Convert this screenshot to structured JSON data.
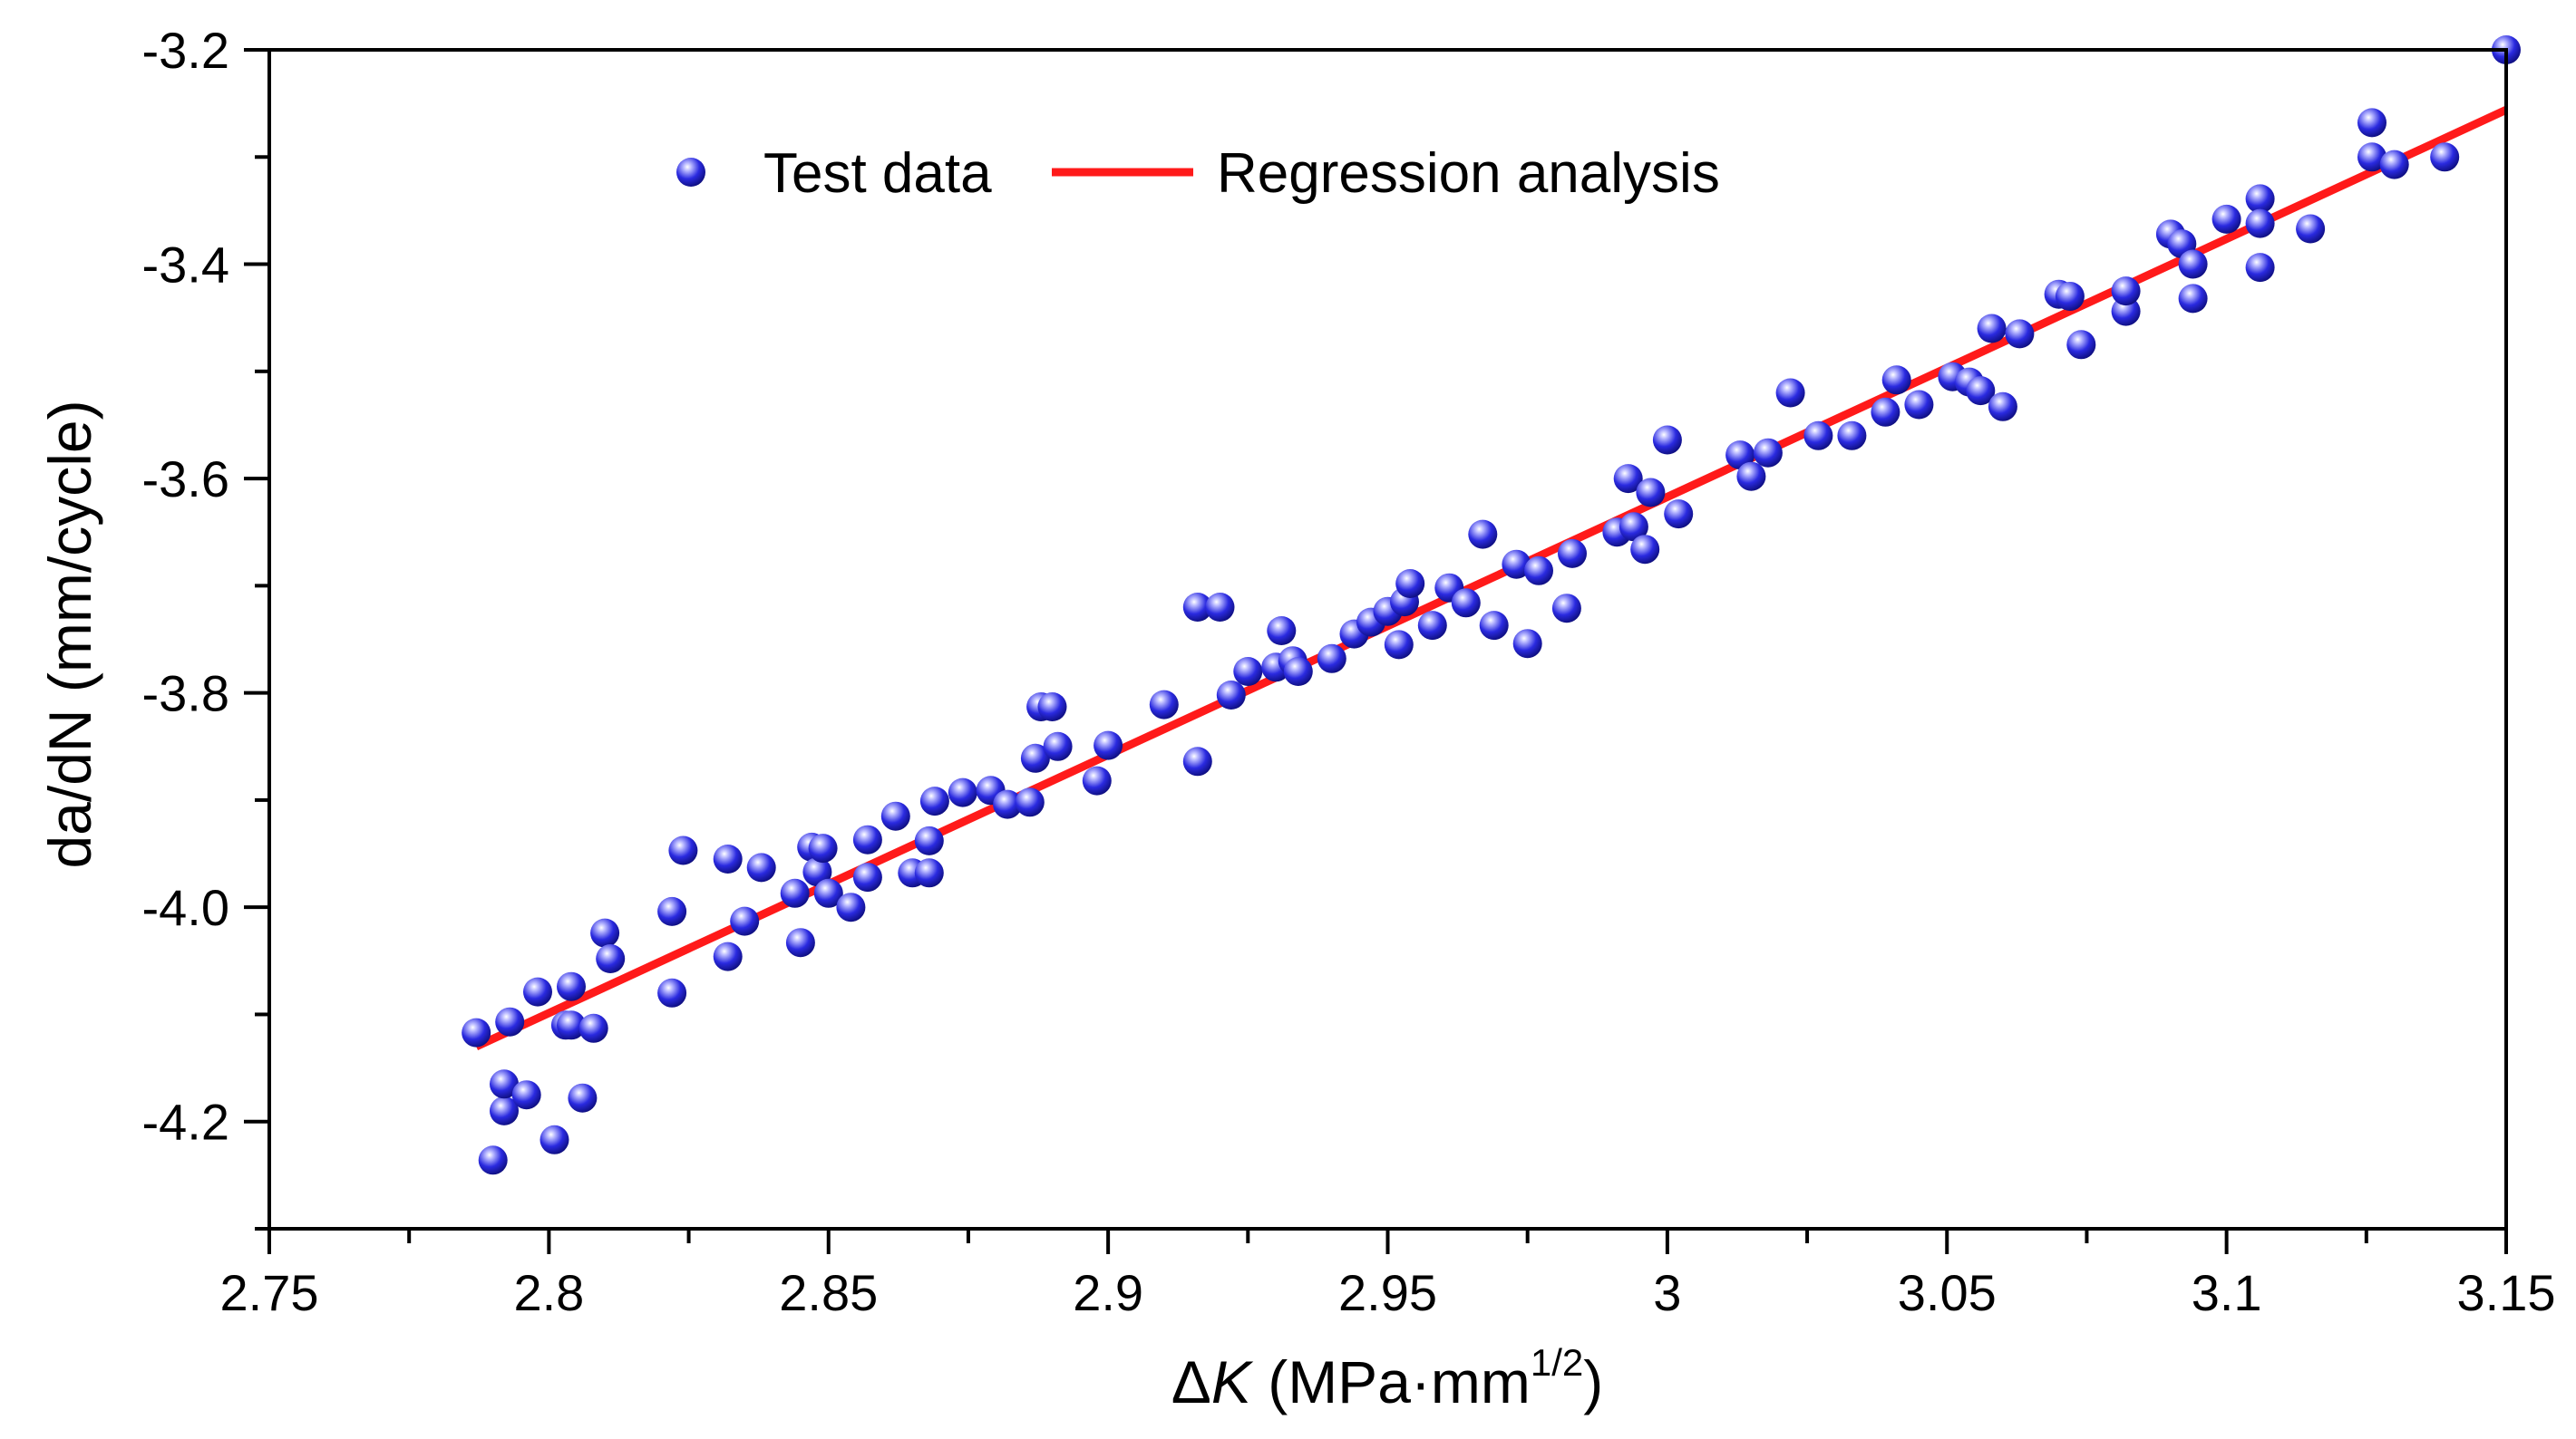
{
  "chart_data": {
    "type": "scatter",
    "xlabel": {
      "symbol": "Δ",
      "variable": "K",
      "unit": " (MPa·mm",
      "superscript": "1/2",
      "close": ")"
    },
    "ylabel": "da/dN (mm/cycle)",
    "xlim": [
      2.75,
      3.15
    ],
    "ylim": [
      -4.3,
      -3.2
    ],
    "x_ticks": [
      2.75,
      2.8,
      2.85,
      2.9,
      2.95,
      3.0,
      3.05,
      3.1,
      3.15
    ],
    "x_tick_labels": [
      "2.75",
      "2.8",
      "2.85",
      "2.9",
      "2.95",
      "3",
      "3.05",
      "3.1",
      "3.15"
    ],
    "y_ticks": [
      -4.2,
      -4.0,
      -3.8,
      -3.6,
      -3.4,
      -3.2
    ],
    "y_tick_labels": [
      "-4.2",
      "-4.0",
      "-3.8",
      "-3.6",
      "-3.4",
      "-3.2"
    ],
    "grid": false,
    "legend": {
      "position": "top-left",
      "entries": [
        "Test data",
        "Regression analysis"
      ]
    },
    "colors": {
      "points": "#1f1fd6",
      "line": "#ff1a1a"
    },
    "series": [
      {
        "name": "Test data",
        "type": "scatter",
        "x": [
          2.787,
          2.79,
          2.792,
          2.792,
          2.793,
          2.796,
          2.798,
          2.801,
          2.803,
          2.804,
          2.804,
          2.806,
          2.808,
          2.81,
          2.811,
          2.822,
          2.822,
          2.824,
          2.832,
          2.832,
          2.835,
          2.838,
          2.844,
          2.845,
          2.847,
          2.848,
          2.849,
          2.85,
          2.854,
          2.857,
          2.857,
          2.862,
          2.865,
          2.868,
          2.868,
          2.869,
          2.874,
          2.879,
          2.882,
          2.886,
          2.887,
          2.888,
          2.89,
          2.891,
          2.898,
          2.9,
          2.91,
          2.916,
          2.916,
          2.92,
          2.922,
          2.925,
          2.93,
          2.931,
          2.933,
          2.934,
          2.94,
          2.944,
          2.947,
          2.95,
          2.952,
          2.953,
          2.954,
          2.958,
          2.961,
          2.964,
          2.967,
          2.969,
          2.973,
          2.975,
          2.977,
          2.982,
          2.983,
          2.991,
          2.993,
          2.994,
          2.996,
          2.997,
          3.0,
          3.002,
          3.013,
          3.015,
          3.018,
          3.022,
          3.027,
          3.033,
          3.039,
          3.041,
          3.045,
          3.051,
          3.054,
          3.056,
          3.058,
          3.06,
          3.063,
          3.07,
          3.072,
          3.074,
          3.082,
          3.082,
          3.09,
          3.092,
          3.094,
          3.094,
          3.1,
          3.106,
          3.106,
          3.106,
          3.115,
          3.126,
          3.126,
          3.13,
          3.139,
          3.15
        ],
        "y": [
          -4.117,
          -4.236,
          -4.19,
          -4.165,
          -4.107,
          -4.175,
          -4.079,
          -4.217,
          -4.11,
          -4.074,
          -4.11,
          -4.178,
          -4.113,
          -4.024,
          -4.048,
          -4.08,
          -4.004,
          -3.947,
          -3.955,
          -4.046,
          -4.013,
          -3.963,
          -3.987,
          -4.033,
          -3.944,
          -3.967,
          -3.945,
          -3.987,
          -4.0,
          -3.972,
          -3.937,
          -3.915,
          -3.968,
          -3.968,
          -3.938,
          -3.901,
          -3.893,
          -3.891,
          -3.904,
          -3.902,
          -3.861,
          -3.813,
          -3.813,
          -3.85,
          -3.882,
          -3.849,
          -3.811,
          -3.864,
          -3.72,
          -3.72,
          -3.802,
          -3.78,
          -3.776,
          -3.742,
          -3.77,
          -3.78,
          -3.768,
          -3.745,
          -3.734,
          -3.724,
          -3.755,
          -3.715,
          -3.698,
          -3.737,
          -3.702,
          -3.716,
          -3.652,
          -3.737,
          -3.68,
          -3.754,
          -3.686,
          -3.721,
          -3.67,
          -3.65,
          -3.6,
          -3.645,
          -3.666,
          -3.613,
          -3.564,
          -3.633,
          -3.578,
          -3.598,
          -3.576,
          -3.52,
          -3.56,
          -3.56,
          -3.538,
          -3.508,
          -3.531,
          -3.505,
          -3.51,
          -3.518,
          -3.46,
          -3.533,
          -3.465,
          -3.428,
          -3.43,
          -3.475,
          -3.444,
          -3.425,
          -3.372,
          -3.381,
          -3.4,
          -3.432,
          -3.358,
          -3.339,
          -3.362,
          -3.403,
          -3.367,
          -3.3,
          -3.268,
          -3.307,
          -3.3,
          -3.2
        ]
      },
      {
        "name": "Regression analysis",
        "type": "line",
        "x": [
          2.787,
          3.15
        ],
        "y": [
          -4.13,
          -3.256
        ]
      }
    ]
  }
}
